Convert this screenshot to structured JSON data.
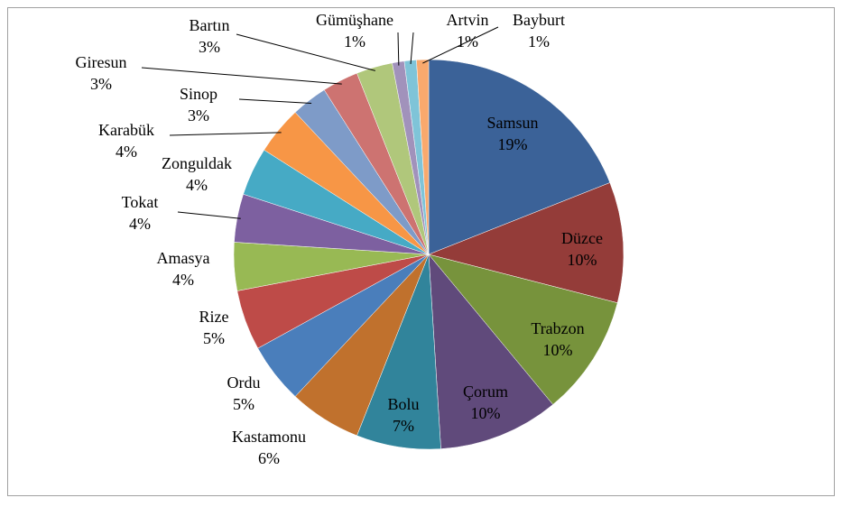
{
  "chart_data": {
    "type": "pie",
    "categories": [
      "Samsun",
      "Düzce",
      "Trabzon",
      "Çorum",
      "Bolu",
      "Kastamonu",
      "Ordu",
      "Rize",
      "Amasya",
      "Tokat",
      "Zonguldak",
      "Karabük",
      "Sinop",
      "Giresun",
      "Bartın",
      "Gümüşhane",
      "Artvin",
      "Bayburt"
    ],
    "values": [
      19,
      10,
      10,
      10,
      7,
      6,
      5,
      5,
      4,
      4,
      4,
      4,
      3,
      3,
      3,
      1,
      1,
      1
    ],
    "value_labels": [
      "19%",
      "10%",
      "10%",
      "10%",
      "7%",
      "6%",
      "5%",
      "5%",
      "4%",
      "4%",
      "4%",
      "4%",
      "3%",
      "3%",
      "3%",
      "1%",
      "1%",
      "1%"
    ],
    "colors": [
      "#3b6298",
      "#943c39",
      "#77933c",
      "#604a7b",
      "#31849b",
      "#c0712d",
      "#4a7ebb",
      "#be4b48",
      "#98b954",
      "#7d60a0",
      "#46aac5",
      "#f79646",
      "#7e9bc8",
      "#cd7371",
      "#b0c77b",
      "#a192bb",
      "#7fc4d8",
      "#f9a96d"
    ]
  }
}
